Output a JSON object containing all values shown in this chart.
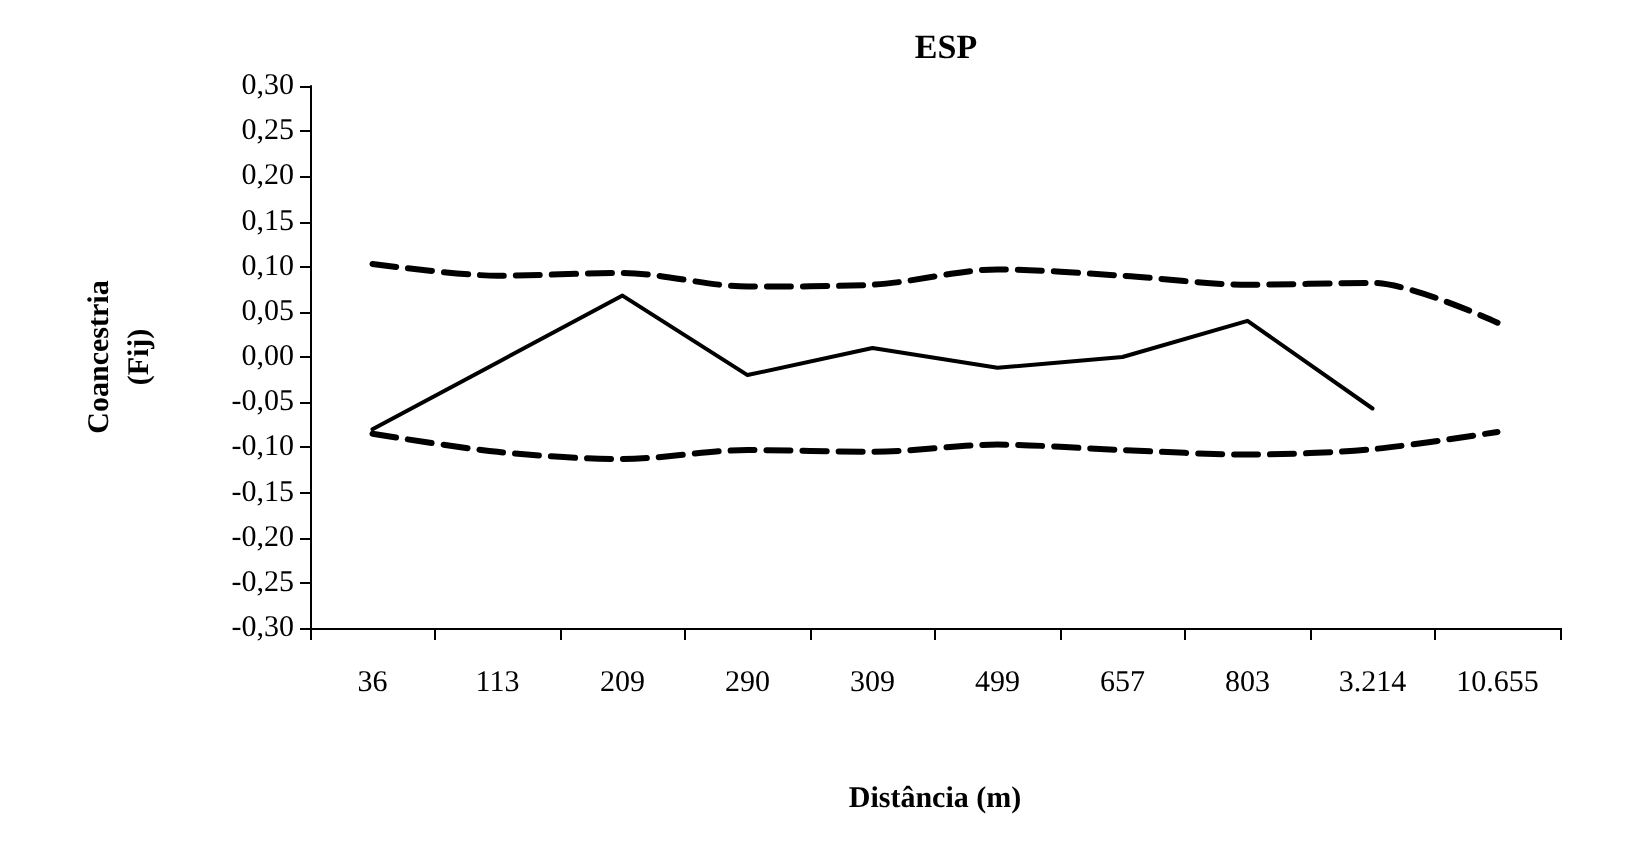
{
  "chart_data": {
    "type": "line",
    "title": "ESP",
    "xlabel": "Distância (m)",
    "ylabel": "Coancestria\n(Fij)",
    "categories": [
      "36",
      "113",
      "209",
      "290",
      "309",
      "499",
      "657",
      "803",
      "3.214",
      "10.655"
    ],
    "series": [
      {
        "color": "#000000",
        "line_style": "dashed",
        "values": [
          0.103,
          0.09,
          0.093,
          0.078,
          0.08,
          0.097,
          0.09,
          0.08,
          0.082,
          0.038
        ]
      },
      {
        "color": "#000000",
        "line_style": "solid",
        "values": [
          -0.08,
          -0.006,
          0.068,
          -0.02,
          0.01,
          -0.012,
          0.0,
          0.04,
          -0.057,
          null
        ]
      },
      {
        "color": "#000000",
        "line_style": "dashed",
        "values": [
          -0.085,
          -0.105,
          -0.113,
          -0.103,
          -0.105,
          -0.097,
          -0.103,
          -0.108,
          -0.102,
          -0.083
        ]
      }
    ],
    "ylim": [
      -0.3,
      0.3
    ],
    "yticks": [
      {
        "value": -0.3,
        "label": "-0,30"
      },
      {
        "value": -0.25,
        "label": "-0,25"
      },
      {
        "value": -0.2,
        "label": "-0,20"
      },
      {
        "value": -0.15,
        "label": "-0,15"
      },
      {
        "value": -0.1,
        "label": "-0,10"
      },
      {
        "value": -0.05,
        "label": "-0,05"
      },
      {
        "value": 0,
        "label": "0,00"
      },
      {
        "value": 0.05,
        "label": "0,05"
      },
      {
        "value": 0.1,
        "label": "0,10"
      },
      {
        "value": 0.15,
        "label": "0,15"
      },
      {
        "value": 0.2,
        "label": "0,20"
      },
      {
        "value": 0.25,
        "label": "0,25"
      },
      {
        "value": 0.3,
        "label": "0,30"
      }
    ],
    "marker": "none"
  }
}
